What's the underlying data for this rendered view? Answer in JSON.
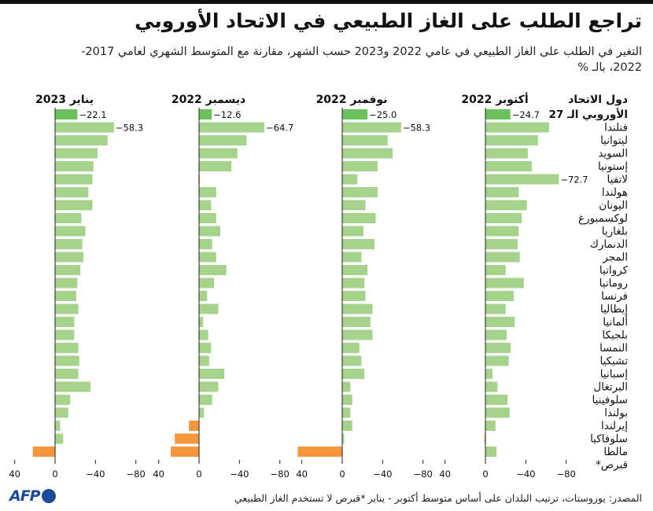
{
  "title": "تراجع الطلب على الغاز الطبيعي في الاتحاد الأوروبي",
  "subtitle": "التغير في الطلب على الغاز الطبيعي في عامي 2022 و2023 حسب الشهر، مقارنة مع المتوسط الشهري لعامي 2017-2022، بالـ %",
  "footer": {
    "source": "المصدر: يوروستات، ترتيب البلدان على أساس متوسط أكتوبر - يناير",
    "note": "*قبرص لا تستخدم الغاز الطبيعي",
    "logo": "AFP"
  },
  "colors": {
    "positive_bar": "#a6d38c",
    "eu_bar": "#6cc25a",
    "negative_bar": "#f5963d",
    "axis": "#222222"
  },
  "chart_data": {
    "type": "bar",
    "orientation": "horizontal",
    "units": "%",
    "countries_header": "دول الاتحاد",
    "countries": [
      "الأوروبي الـ 27",
      "فنلندا",
      "ليتوانيا",
      "السويد",
      "إستونيا",
      "لاتفيا",
      "هولندا",
      "اليونان",
      "لوكسمبورغ",
      "بلغاريا",
      "الدنمارك",
      "المجر",
      "كرواتيا",
      "رومانيا",
      "فرنسا",
      "إيطاليا",
      "ألمانيا",
      "بلجيكا",
      "النمسا",
      "تشيكيا",
      "إسبانيا",
      "البرتغال",
      "سلوفينيا",
      "بولندا",
      "إيرلندا",
      "سلوفاكيا",
      "مالطا",
      "قبرص*"
    ],
    "x_ticks": [
      40,
      0,
      -40,
      -80
    ],
    "xlim": [
      40,
      -80
    ],
    "series": [
      {
        "name": "أكتوبر 2022",
        "labels": [
          "−24.7",
          "",
          "",
          "",
          "",
          "−72.7"
        ],
        "values": [
          -24.7,
          -63,
          -52,
          -42,
          -46,
          -72.7,
          -33,
          -41,
          -36,
          -33,
          -32,
          -34,
          -20,
          -38,
          -28,
          -20,
          -29,
          -21,
          -25,
          -23,
          -7,
          -12,
          -22,
          -24,
          -10,
          1,
          -11,
          null
        ]
      },
      {
        "name": "نوفمبر 2022",
        "labels": [
          "−25.0",
          "−58.3"
        ],
        "values": [
          -25.0,
          -58.3,
          -45,
          -50,
          -35,
          -15,
          -35,
          -23,
          -33,
          -21,
          -32,
          -19,
          -25,
          -22,
          -23,
          -30,
          -28,
          -30,
          -17,
          -19,
          -22,
          -8,
          -10,
          -8,
          -10,
          -2,
          44,
          null
        ]
      },
      {
        "name": "ديسمبر 2022",
        "labels": [
          "−12.6",
          "−64.7"
        ],
        "values": [
          -12.6,
          -64.7,
          -47,
          -38,
          -32,
          0.5,
          -17,
          -12,
          -17,
          -21,
          -13,
          -17,
          -27,
          -15,
          -8,
          -19,
          -4,
          -9,
          -12,
          -10,
          -25,
          -19,
          -13,
          -5,
          10,
          24,
          28,
          null
        ]
      },
      {
        "name": "يناير 2023",
        "labels": [
          "−22.1",
          "−58.3"
        ],
        "values": [
          -22.1,
          -58.3,
          -52,
          -42,
          -38,
          -37,
          -33,
          -37,
          -26,
          -30,
          -27,
          -28,
          -25,
          -22,
          -21,
          -23,
          -19,
          -19,
          -23,
          -24,
          -23,
          -35,
          -15,
          -13,
          -5,
          -8,
          22,
          null
        ]
      }
    ]
  }
}
